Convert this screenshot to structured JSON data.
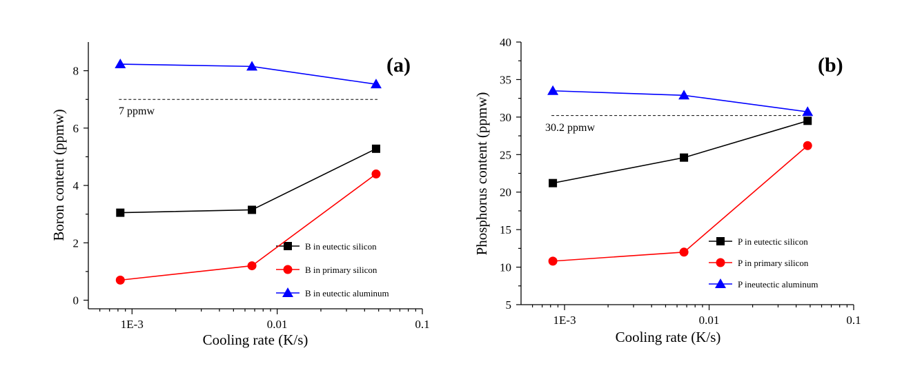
{
  "chart_data": [
    {
      "type": "line",
      "panel_label": "(a)",
      "xscale": "log",
      "xlim": [
        0.0005,
        0.1
      ],
      "xticks": [
        0.001,
        0.01,
        0.1
      ],
      "xtick_labels": [
        "1E-3",
        "0.01",
        "0.1"
      ],
      "xlabel": "Cooling rate (K/s)",
      "ylabel": "Boron content (ppmw)",
      "ylim": [
        -0.3,
        9
      ],
      "yticks": [
        0,
        2,
        4,
        6,
        8
      ],
      "ytick_labels": [
        "0",
        "2",
        "4",
        "6",
        "8"
      ],
      "x": [
        0.00083,
        0.0067,
        0.048
      ],
      "series": [
        {
          "name": "B in eutectic silicon",
          "values": [
            3.05,
            3.15,
            5.28
          ],
          "color": "#000000",
          "marker": "square"
        },
        {
          "name": "B in primary silicon",
          "values": [
            0.7,
            1.2,
            4.4
          ],
          "color": "#ff0000",
          "marker": "circle"
        },
        {
          "name": "B in eutectic aluminum",
          "values": [
            8.23,
            8.15,
            7.53
          ],
          "color": "#0000ff",
          "marker": "triangle"
        }
      ],
      "reference_line": {
        "value": 7,
        "x_range": [
          0.00083,
          0.048
        ],
        "label": "7 ppmw"
      },
      "legend_position": "bottom-right"
    },
    {
      "type": "line",
      "panel_label": "(b)",
      "xscale": "log",
      "xlim": [
        0.0005,
        0.1
      ],
      "xticks": [
        0.001,
        0.01,
        0.1
      ],
      "xtick_labels": [
        "1E-3",
        "0.01",
        "0.1"
      ],
      "xlabel": "Cooling rate (K/s)",
      "ylabel": "Phosphorus content (ppmw)",
      "ylim": [
        5,
        40
      ],
      "yticks": [
        5,
        10,
        15,
        20,
        25,
        30,
        35,
        40
      ],
      "ytick_labels": [
        "5",
        "10",
        "15",
        "20",
        "25",
        "30",
        "35",
        "40"
      ],
      "x": [
        0.00083,
        0.0067,
        0.048
      ],
      "series": [
        {
          "name": "P in eutectic silicon",
          "values": [
            21.2,
            24.6,
            29.5
          ],
          "color": "#000000",
          "marker": "square"
        },
        {
          "name": "P in primary silicon",
          "values": [
            10.8,
            12.0,
            26.2
          ],
          "color": "#ff0000",
          "marker": "circle"
        },
        {
          "name": "P ineutectic aluminum",
          "values": [
            33.5,
            32.9,
            30.7
          ],
          "color": "#0000ff",
          "marker": "triangle"
        }
      ],
      "reference_line": {
        "value": 30.2,
        "x_range": [
          0.00083,
          0.048
        ],
        "label": "30.2 ppmw"
      },
      "legend_position": "bottom-right"
    }
  ]
}
